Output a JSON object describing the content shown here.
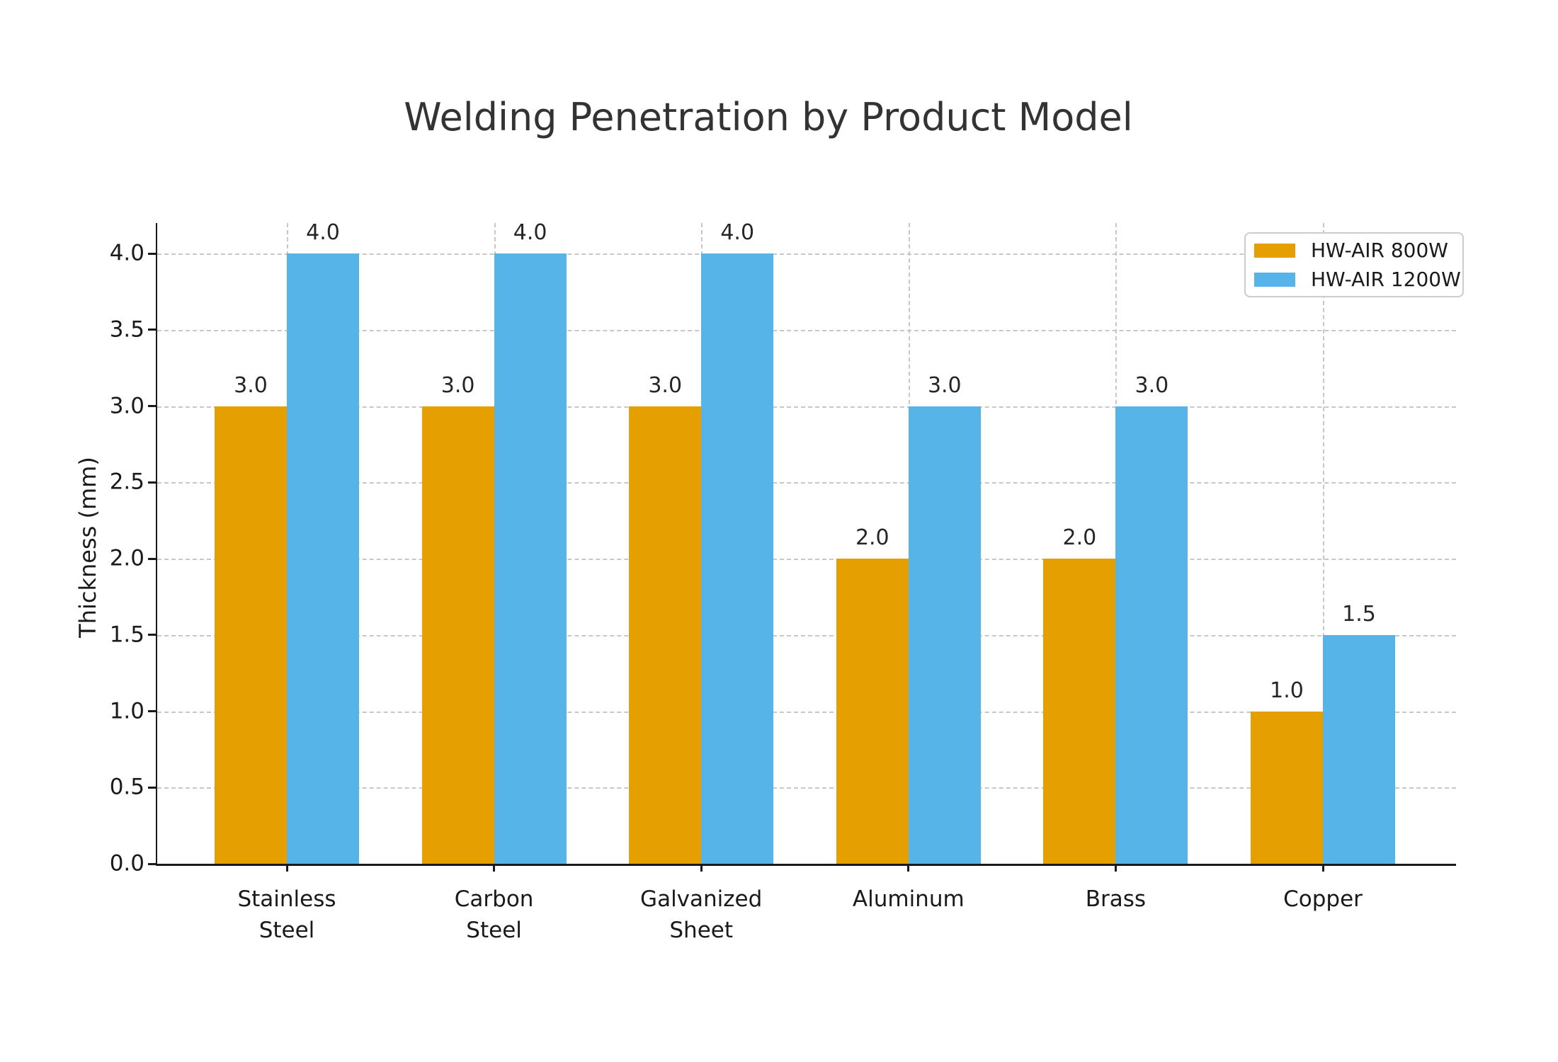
{
  "chart_data": {
    "type": "bar",
    "title": "Welding Penetration by Product Model",
    "xlabel": "",
    "ylabel": "Thickness (mm)",
    "categories": [
      "Stainless Steel",
      "Carbon Steel",
      "Galvanized Sheet",
      "Aluminum",
      "Brass",
      "Copper"
    ],
    "categories_lines": [
      [
        "Stainless",
        "Steel"
      ],
      [
        "Carbon",
        "Steel"
      ],
      [
        "Galvanized",
        "Sheet"
      ],
      [
        "Aluminum"
      ],
      [
        "Brass"
      ],
      [
        "Copper"
      ]
    ],
    "series": [
      {
        "name": "HW-AIR 800W",
        "color": "#E69F00",
        "values": [
          3.0,
          3.0,
          3.0,
          2.0,
          2.0,
          1.0
        ]
      },
      {
        "name": "HW-AIR 1200W",
        "color": "#56B4E9",
        "values": [
          4.0,
          4.0,
          4.0,
          3.0,
          3.0,
          1.5
        ]
      }
    ],
    "bar_value_labels": [
      "3.0",
      "4.0",
      "3.0",
      "4.0",
      "3.0",
      "4.0",
      "2.0",
      "3.0",
      "2.0",
      "3.0",
      "1.0",
      "1.5"
    ],
    "ylim": [
      0.0,
      4.2
    ],
    "yticks": [
      0.0,
      0.5,
      1.0,
      1.5,
      2.0,
      2.5,
      3.0,
      3.5,
      4.0
    ],
    "grid": {
      "horizontal": true,
      "vertical": true,
      "style": "dashed"
    },
    "legend_position": "upper right"
  },
  "colors": {
    "background": "#ffffff",
    "title": "#333333",
    "axis": "#1a1a1a",
    "tick_text": "#1a1a1a",
    "value_label": "#262626",
    "grid": "#c8c8c8",
    "legend_border": "#cccccc",
    "series_800w": "#E69F00",
    "series_1200w": "#56B4E9"
  }
}
